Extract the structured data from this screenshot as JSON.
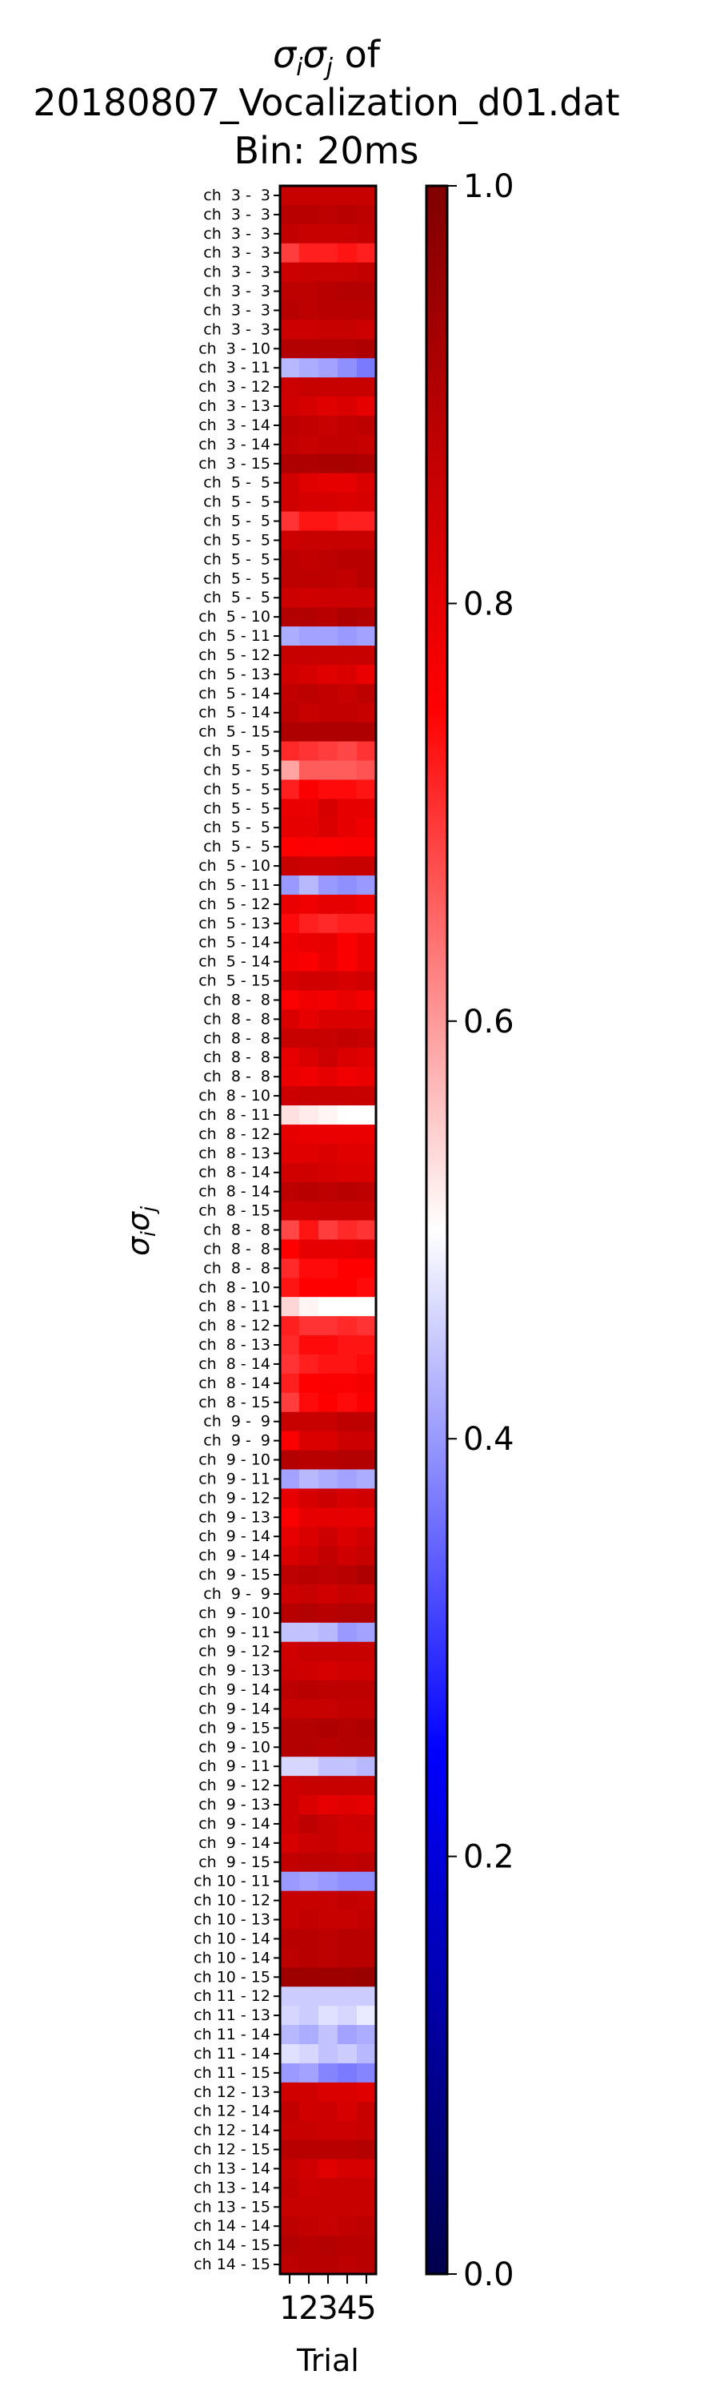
{
  "chart_data": {
    "type": "heatmap",
    "title_lines": [
      "σiσj of",
      "20180807_Vocalization_d01.dat",
      "Bin: 20ms"
    ],
    "title_symbol": "σiσj",
    "title_symbol_suffix": " of",
    "xlabel": "Trial",
    "ylabel": "σiσj",
    "x_categories": [
      "1",
      "2",
      "3",
      "4",
      "5"
    ],
    "colorbar": {
      "colormap": "seismic",
      "range": [
        0.0,
        1.0
      ],
      "ticks": [
        "0.0",
        "0.2",
        "0.4",
        "0.6",
        "0.8",
        "1.0"
      ]
    },
    "rows": [
      {
        "label": "ch  3 -  3",
        "values": [
          0.86,
          0.86,
          0.86,
          0.86,
          0.86
        ]
      },
      {
        "label": "ch  3 -  3",
        "values": [
          0.89,
          0.89,
          0.88,
          0.89,
          0.88
        ]
      },
      {
        "label": "ch  3 -  3",
        "values": [
          0.87,
          0.86,
          0.86,
          0.86,
          0.87
        ]
      },
      {
        "label": "ch  3 -  3",
        "values": [
          0.69,
          0.72,
          0.72,
          0.73,
          0.72
        ]
      },
      {
        "label": "ch  3 -  3",
        "values": [
          0.85,
          0.86,
          0.86,
          0.86,
          0.87
        ]
      },
      {
        "label": "ch  3 -  3",
        "values": [
          0.88,
          0.88,
          0.89,
          0.9,
          0.9
        ]
      },
      {
        "label": "ch  3 -  3",
        "values": [
          0.89,
          0.88,
          0.89,
          0.89,
          0.89
        ]
      },
      {
        "label": "ch  3 -  3",
        "values": [
          0.85,
          0.85,
          0.86,
          0.86,
          0.85
        ]
      },
      {
        "label": "ch  3 - 10",
        "values": [
          0.9,
          0.9,
          0.9,
          0.9,
          0.91
        ]
      },
      {
        "label": "ch  3 - 11",
        "values": [
          0.43,
          0.42,
          0.41,
          0.39,
          0.37
        ]
      },
      {
        "label": "ch  3 - 12",
        "values": [
          0.85,
          0.86,
          0.86,
          0.86,
          0.86
        ]
      },
      {
        "label": "ch  3 - 13",
        "values": [
          0.84,
          0.83,
          0.81,
          0.82,
          0.8
        ]
      },
      {
        "label": "ch  3 - 14",
        "values": [
          0.88,
          0.87,
          0.86,
          0.87,
          0.88
        ]
      },
      {
        "label": "ch  3 - 14",
        "values": [
          0.87,
          0.86,
          0.87,
          0.87,
          0.86
        ]
      },
      {
        "label": "ch  3 - 15",
        "values": [
          0.91,
          0.91,
          0.92,
          0.92,
          0.91
        ]
      },
      {
        "label": "ch  5 -  5",
        "values": [
          0.84,
          0.81,
          0.8,
          0.8,
          0.82
        ]
      },
      {
        "label": "ch  5 -  5",
        "values": [
          0.84,
          0.83,
          0.83,
          0.82,
          0.83
        ]
      },
      {
        "label": "ch  5 -  5",
        "values": [
          0.7,
          0.73,
          0.73,
          0.72,
          0.72
        ]
      },
      {
        "label": "ch  5 -  5",
        "values": [
          0.85,
          0.86,
          0.86,
          0.86,
          0.86
        ]
      },
      {
        "label": "ch  5 -  5",
        "values": [
          0.88,
          0.87,
          0.88,
          0.89,
          0.89
        ]
      },
      {
        "label": "ch  5 -  5",
        "values": [
          0.88,
          0.88,
          0.88,
          0.87,
          0.89
        ]
      },
      {
        "label": "ch  5 -  5",
        "values": [
          0.85,
          0.84,
          0.85,
          0.85,
          0.85
        ]
      },
      {
        "label": "ch  5 - 10",
        "values": [
          0.9,
          0.9,
          0.89,
          0.91,
          0.9
        ]
      },
      {
        "label": "ch  5 - 11",
        "values": [
          0.42,
          0.41,
          0.41,
          0.4,
          0.41
        ]
      },
      {
        "label": "ch  5 - 12",
        "values": [
          0.86,
          0.86,
          0.86,
          0.86,
          0.86
        ]
      },
      {
        "label": "ch  5 - 13",
        "values": [
          0.84,
          0.83,
          0.81,
          0.82,
          0.79
        ]
      },
      {
        "label": "ch  5 - 14",
        "values": [
          0.87,
          0.88,
          0.87,
          0.86,
          0.88
        ]
      },
      {
        "label": "ch  5 - 14",
        "values": [
          0.88,
          0.86,
          0.87,
          0.87,
          0.86
        ]
      },
      {
        "label": "ch  5 - 15",
        "values": [
          0.91,
          0.91,
          0.91,
          0.91,
          0.91
        ]
      },
      {
        "label": "ch  5 -  5",
        "values": [
          0.71,
          0.7,
          0.69,
          0.68,
          0.7
        ]
      },
      {
        "label": "ch  5 -  5",
        "values": [
          0.59,
          0.66,
          0.66,
          0.66,
          0.67
        ]
      },
      {
        "label": "ch  5 -  5",
        "values": [
          0.72,
          0.76,
          0.74,
          0.74,
          0.73
        ]
      },
      {
        "label": "ch  5 -  5",
        "values": [
          0.79,
          0.79,
          0.83,
          0.8,
          0.8
        ]
      },
      {
        "label": "ch  5 -  5",
        "values": [
          0.8,
          0.8,
          0.82,
          0.8,
          0.78
        ]
      },
      {
        "label": "ch  5 -  5",
        "values": [
          0.75,
          0.76,
          0.75,
          0.76,
          0.76
        ]
      },
      {
        "label": "ch  5 - 10",
        "values": [
          0.86,
          0.85,
          0.85,
          0.86,
          0.86
        ]
      },
      {
        "label": "ch  5 - 11",
        "values": [
          0.4,
          0.43,
          0.4,
          0.39,
          0.4
        ]
      },
      {
        "label": "ch  5 - 12",
        "values": [
          0.79,
          0.78,
          0.8,
          0.8,
          0.78
        ]
      },
      {
        "label": "ch  5 - 13",
        "values": [
          0.74,
          0.72,
          0.71,
          0.72,
          0.72
        ]
      },
      {
        "label": "ch  5 - 14",
        "values": [
          0.78,
          0.79,
          0.8,
          0.76,
          0.79
        ]
      },
      {
        "label": "ch  5 - 14",
        "values": [
          0.77,
          0.76,
          0.79,
          0.76,
          0.79
        ]
      },
      {
        "label": "ch  5 - 15",
        "values": [
          0.83,
          0.84,
          0.84,
          0.83,
          0.84
        ]
      },
      {
        "label": "ch  8 -  8",
        "values": [
          0.76,
          0.78,
          0.77,
          0.79,
          0.77
        ]
      },
      {
        "label": "ch  8 -  8",
        "values": [
          0.82,
          0.8,
          0.82,
          0.82,
          0.82
        ]
      },
      {
        "label": "ch  8 -  8",
        "values": [
          0.86,
          0.86,
          0.86,
          0.87,
          0.86
        ]
      },
      {
        "label": "ch  8 -  8",
        "values": [
          0.8,
          0.82,
          0.85,
          0.82,
          0.81
        ]
      },
      {
        "label": "ch  8 -  8",
        "values": [
          0.79,
          0.78,
          0.8,
          0.78,
          0.79
        ]
      },
      {
        "label": "ch  8 - 10",
        "values": [
          0.85,
          0.86,
          0.86,
          0.86,
          0.86
        ]
      },
      {
        "label": "ch  8 - 11",
        "values": [
          0.53,
          0.52,
          0.51,
          0.5,
          0.5
        ]
      },
      {
        "label": "ch  8 - 12",
        "values": [
          0.8,
          0.79,
          0.79,
          0.79,
          0.79
        ]
      },
      {
        "label": "ch  8 - 13",
        "values": [
          0.81,
          0.81,
          0.82,
          0.81,
          0.81
        ]
      },
      {
        "label": "ch  8 - 14",
        "values": [
          0.84,
          0.84,
          0.83,
          0.82,
          0.82
        ]
      },
      {
        "label": "ch  8 - 14",
        "values": [
          0.88,
          0.89,
          0.88,
          0.89,
          0.88
        ]
      },
      {
        "label": "ch  8 - 15",
        "values": [
          0.85,
          0.85,
          0.86,
          0.86,
          0.86
        ]
      },
      {
        "label": "ch  8 -  8",
        "values": [
          0.68,
          0.73,
          0.69,
          0.71,
          0.7
        ]
      },
      {
        "label": "ch  8 -  8",
        "values": [
          0.75,
          0.8,
          0.8,
          0.8,
          0.81
        ]
      },
      {
        "label": "ch  8 -  8",
        "values": [
          0.71,
          0.74,
          0.74,
          0.75,
          0.75
        ]
      },
      {
        "label": "ch  8 - 10",
        "values": [
          0.73,
          0.75,
          0.75,
          0.75,
          0.74
        ]
      },
      {
        "label": "ch  8 - 11",
        "values": [
          0.54,
          0.51,
          0.5,
          0.5,
          0.5
        ]
      },
      {
        "label": "ch  8 - 12",
        "values": [
          0.72,
          0.7,
          0.7,
          0.71,
          0.7
        ]
      },
      {
        "label": "ch  8 - 13",
        "values": [
          0.71,
          0.74,
          0.74,
          0.73,
          0.73
        ]
      },
      {
        "label": "ch  8 - 14",
        "values": [
          0.7,
          0.72,
          0.73,
          0.73,
          0.74
        ]
      },
      {
        "label": "ch  8 - 14",
        "values": [
          0.72,
          0.75,
          0.76,
          0.76,
          0.77
        ]
      },
      {
        "label": "ch  8 - 15",
        "values": [
          0.69,
          0.74,
          0.75,
          0.74,
          0.76
        ]
      },
      {
        "label": "ch  9 -  9",
        "values": [
          0.86,
          0.86,
          0.86,
          0.88,
          0.88
        ]
      },
      {
        "label": "ch  9 -  9",
        "values": [
          0.76,
          0.82,
          0.82,
          0.85,
          0.85
        ]
      },
      {
        "label": "ch  9 - 10",
        "values": [
          0.9,
          0.89,
          0.89,
          0.9,
          0.9
        ]
      },
      {
        "label": "ch  9 - 11",
        "values": [
          0.41,
          0.43,
          0.42,
          0.41,
          0.42
        ]
      },
      {
        "label": "ch  9 - 12",
        "values": [
          0.8,
          0.83,
          0.85,
          0.83,
          0.84
        ]
      },
      {
        "label": "ch  9 - 13",
        "values": [
          0.76,
          0.8,
          0.8,
          0.8,
          0.8
        ]
      },
      {
        "label": "ch  9 - 14",
        "values": [
          0.8,
          0.82,
          0.85,
          0.82,
          0.84
        ]
      },
      {
        "label": "ch  9 - 14",
        "values": [
          0.82,
          0.84,
          0.87,
          0.84,
          0.86
        ]
      },
      {
        "label": "ch  9 - 15",
        "values": [
          0.88,
          0.89,
          0.88,
          0.89,
          0.91
        ]
      },
      {
        "label": "ch  9 -  9",
        "values": [
          0.85,
          0.86,
          0.84,
          0.86,
          0.85
        ]
      },
      {
        "label": "ch  9 - 10",
        "values": [
          0.89,
          0.9,
          0.89,
          0.9,
          0.9
        ]
      },
      {
        "label": "ch  9 - 11",
        "values": [
          0.44,
          0.44,
          0.43,
          0.4,
          0.41
        ]
      },
      {
        "label": "ch  9 - 12",
        "values": [
          0.84,
          0.86,
          0.86,
          0.86,
          0.86
        ]
      },
      {
        "label": "ch  9 - 13",
        "values": [
          0.85,
          0.84,
          0.83,
          0.84,
          0.84
        ]
      },
      {
        "label": "ch  9 - 14",
        "values": [
          0.88,
          0.89,
          0.88,
          0.88,
          0.88
        ]
      },
      {
        "label": "ch  9 - 14",
        "values": [
          0.86,
          0.86,
          0.86,
          0.87,
          0.87
        ]
      },
      {
        "label": "ch  9 - 15",
        "values": [
          0.9,
          0.9,
          0.91,
          0.9,
          0.91
        ]
      },
      {
        "label": "ch  9 - 10",
        "values": [
          0.9,
          0.9,
          0.89,
          0.9,
          0.9
        ]
      },
      {
        "label": "ch  9 - 11",
        "values": [
          0.46,
          0.46,
          0.44,
          0.44,
          0.43
        ]
      },
      {
        "label": "ch  9 - 12",
        "values": [
          0.85,
          0.86,
          0.86,
          0.86,
          0.86
        ]
      },
      {
        "label": "ch  9 - 13",
        "values": [
          0.85,
          0.82,
          0.8,
          0.81,
          0.8
        ]
      },
      {
        "label": "ch  9 - 14",
        "values": [
          0.85,
          0.88,
          0.86,
          0.84,
          0.85
        ]
      },
      {
        "label": "ch  9 - 14",
        "values": [
          0.83,
          0.85,
          0.86,
          0.84,
          0.84
        ]
      },
      {
        "label": "ch  9 - 15",
        "values": [
          0.87,
          0.88,
          0.88,
          0.87,
          0.88
        ]
      },
      {
        "label": "ch 10 - 11",
        "values": [
          0.4,
          0.41,
          0.4,
          0.39,
          0.39
        ]
      },
      {
        "label": "ch 10 - 12",
        "values": [
          0.86,
          0.86,
          0.86,
          0.87,
          0.86
        ]
      },
      {
        "label": "ch 10 - 13",
        "values": [
          0.86,
          0.87,
          0.86,
          0.86,
          0.87
        ]
      },
      {
        "label": "ch 10 - 14",
        "values": [
          0.89,
          0.89,
          0.88,
          0.89,
          0.89
        ]
      },
      {
        "label": "ch 10 - 14",
        "values": [
          0.88,
          0.89,
          0.88,
          0.89,
          0.89
        ]
      },
      {
        "label": "ch 10 - 15",
        "values": [
          0.94,
          0.94,
          0.94,
          0.94,
          0.95
        ]
      },
      {
        "label": "ch 11 - 12",
        "values": [
          0.45,
          0.45,
          0.45,
          0.45,
          0.45
        ]
      },
      {
        "label": "ch 11 - 13",
        "values": [
          0.46,
          0.45,
          0.47,
          0.46,
          0.48
        ]
      },
      {
        "label": "ch 11 - 14",
        "values": [
          0.43,
          0.42,
          0.44,
          0.41,
          0.42
        ]
      },
      {
        "label": "ch 11 - 14",
        "values": [
          0.47,
          0.46,
          0.44,
          0.45,
          0.43
        ]
      },
      {
        "label": "ch 11 - 15",
        "values": [
          0.4,
          0.41,
          0.38,
          0.37,
          0.38
        ]
      },
      {
        "label": "ch 12 - 13",
        "values": [
          0.84,
          0.84,
          0.82,
          0.82,
          0.81
        ]
      },
      {
        "label": "ch 12 - 14",
        "values": [
          0.87,
          0.84,
          0.85,
          0.83,
          0.86
        ]
      },
      {
        "label": "ch 12 - 14",
        "values": [
          0.86,
          0.86,
          0.85,
          0.85,
          0.86
        ]
      },
      {
        "label": "ch 12 - 15",
        "values": [
          0.89,
          0.89,
          0.89,
          0.89,
          0.9
        ]
      },
      {
        "label": "ch 13 - 14",
        "values": [
          0.86,
          0.84,
          0.81,
          0.83,
          0.83
        ]
      },
      {
        "label": "ch 13 - 14",
        "values": [
          0.87,
          0.85,
          0.86,
          0.86,
          0.86
        ]
      },
      {
        "label": "ch 13 - 15",
        "values": [
          0.86,
          0.86,
          0.86,
          0.86,
          0.86
        ]
      },
      {
        "label": "ch 14 - 14",
        "values": [
          0.88,
          0.87,
          0.86,
          0.87,
          0.88
        ]
      },
      {
        "label": "ch 14 - 15",
        "values": [
          0.9,
          0.89,
          0.9,
          0.89,
          0.89
        ]
      },
      {
        "label": "ch 14 - 15",
        "values": [
          0.88,
          0.89,
          0.89,
          0.88,
          0.89
        ]
      }
    ]
  }
}
